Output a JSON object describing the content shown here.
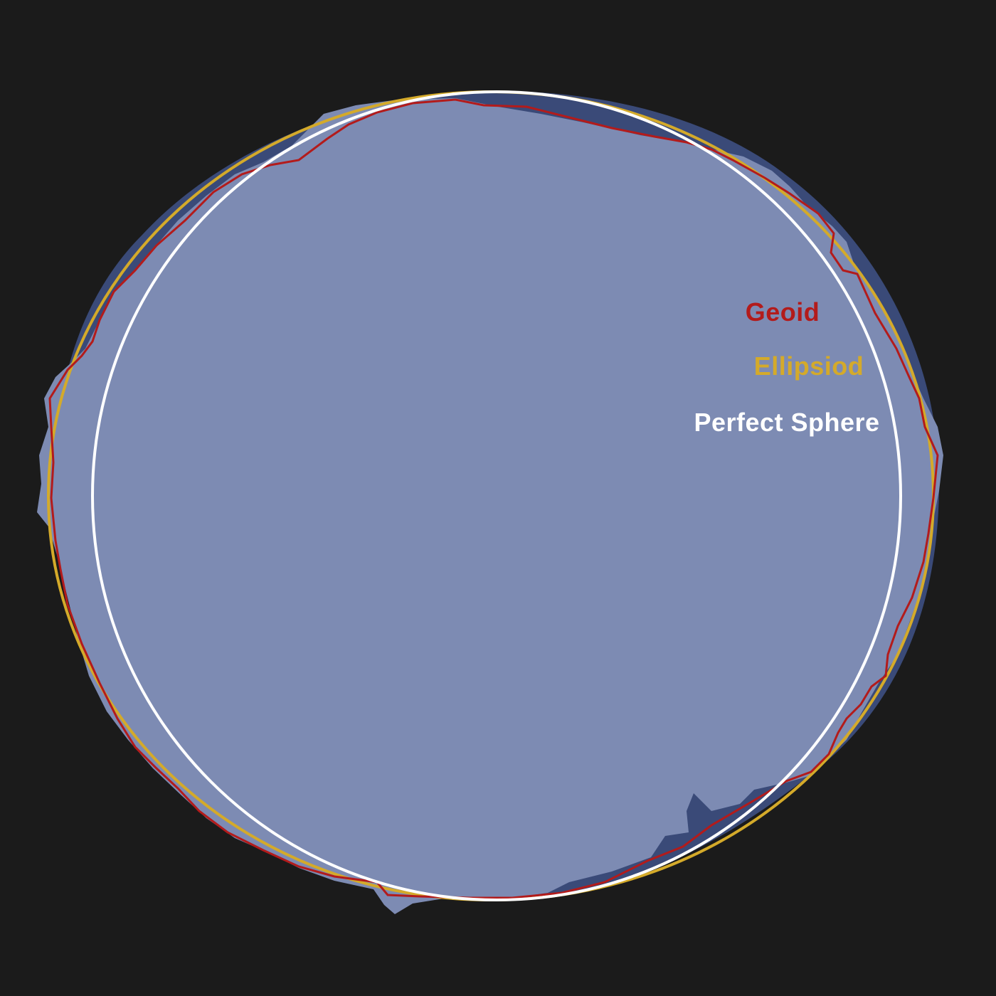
{
  "labels": {
    "geoid": "Geoid",
    "ellipsoid": "Ellipsiod",
    "sphere": "Perfect Sphere"
  },
  "colors": {
    "background": "#1b1b1b",
    "terrain_fill": "#7d8bb3",
    "terrain_shadow": "#3a4a78",
    "geoid": "#b31b1b",
    "ellipsoid": "#d4aa2a",
    "sphere": "#ffffff"
  }
}
